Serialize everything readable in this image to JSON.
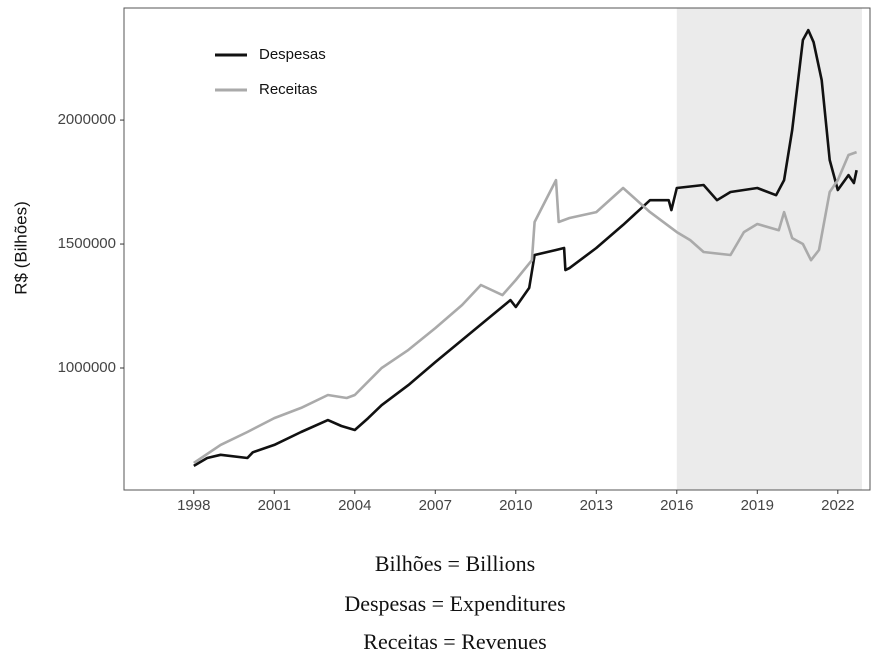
{
  "chart_data": {
    "type": "line",
    "ylabel": "R$ (Bilhões)",
    "xlim": [
      1995.4,
      2023.2
    ],
    "ylim": [
      508000,
      2452000
    ],
    "xticks": [
      1998,
      2001,
      2004,
      2007,
      2010,
      2013,
      2016,
      2019,
      2022
    ],
    "yticks": [
      1000000,
      1500000,
      2000000
    ],
    "grid": false,
    "legend": "top-left",
    "shaded_region": [
      2016,
      2022.9
    ],
    "shade_color": "#ebebeb",
    "series": [
      {
        "name": "Despesas",
        "color": "#111111",
        "x": [
          1998.0,
          1998.5,
          1999,
          2000,
          2000.2,
          2001,
          2002,
          2003,
          2003.5,
          2004,
          2004.5,
          2005,
          2006,
          2007,
          2008,
          2009,
          2009.8,
          2010,
          2010.5,
          2010.7,
          2011.5,
          2011.8,
          2011.85,
          2012,
          2013,
          2014,
          2015,
          2015.7,
          2015.8,
          2016,
          2017,
          2017.5,
          2018,
          2019,
          2019.7,
          2020.0,
          2020.3,
          2020.7,
          2020.9,
          2021.1,
          2021.4,
          2021.7,
          2022.0,
          2022.4,
          2022.6,
          2022.7
        ],
        "values": [
          605000,
          637000,
          650000,
          637000,
          660000,
          690000,
          742000,
          790000,
          766000,
          750000,
          798000,
          850000,
          931000,
          1024000,
          1113000,
          1202000,
          1274000,
          1246000,
          1323000,
          1456000,
          1476000,
          1484000,
          1395000,
          1403000,
          1484000,
          1577000,
          1677000,
          1677000,
          1637000,
          1726000,
          1738000,
          1677000,
          1710000,
          1726000,
          1697000,
          1758000,
          1960000,
          2323000,
          2363000,
          2314000,
          2161000,
          1839000,
          1718000,
          1778000,
          1746000,
          1798000
        ]
      },
      {
        "name": "Receitas",
        "color": "#aaaaaa",
        "x": [
          1998.0,
          1999,
          2000,
          2001,
          2002,
          2003,
          2003.7,
          2004,
          2005,
          2006,
          2007,
          2008,
          2008.7,
          2009.5,
          2010,
          2010.6,
          2010.7,
          2011.5,
          2011.6,
          2012,
          2013,
          2014,
          2015,
          2016,
          2016.5,
          2017,
          2018,
          2018.5,
          2019,
          2019.8,
          2020,
          2020.3,
          2020.7,
          2021.0,
          2021.3,
          2021.7,
          2022,
          2022.4,
          2022.7
        ],
        "values": [
          617000,
          690000,
          742000,
          798000,
          839000,
          891000,
          879000,
          891000,
          1000000,
          1073000,
          1161000,
          1254000,
          1335000,
          1294000,
          1355000,
          1435000,
          1589000,
          1758000,
          1589000,
          1605000,
          1629000,
          1726000,
          1629000,
          1548000,
          1516000,
          1468000,
          1456000,
          1548000,
          1581000,
          1556000,
          1629000,
          1524000,
          1500000,
          1435000,
          1476000,
          1710000,
          1758000,
          1859000,
          1871000
        ]
      }
    ],
    "notes": [
      "Bilhões = Billions",
      "Despesas = Expenditures",
      "Receitas = Revenues"
    ]
  }
}
